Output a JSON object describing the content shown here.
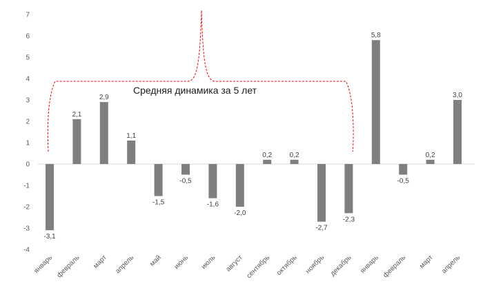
{
  "chart_data": {
    "type": "bar",
    "categories": [
      "январь",
      "февраль",
      "март",
      "апрель",
      "май",
      "июнь",
      "июль",
      "август",
      "сентябрь",
      "октябрь",
      "ноябрь",
      "декабрь",
      "январь",
      "февраль",
      "март",
      "апрель"
    ],
    "values": [
      -3.1,
      2.1,
      2.9,
      1.1,
      -1.5,
      -0.5,
      -1.6,
      -2.0,
      0.2,
      0.2,
      -2.7,
      -2.3,
      5.8,
      -0.5,
      0.2,
      3.0
    ],
    "value_labels": [
      "-3,1",
      "2,1",
      "2,9",
      "1,1",
      "-1,5",
      "-0,5",
      "-1,6",
      "-2,0",
      "0,2",
      "0,2",
      "-2,7",
      "-2,3",
      "5,8",
      "-0,5",
      "0,2",
      "3,0"
    ],
    "ylim": [
      -4,
      7
    ],
    "yticks": [
      -4,
      -3,
      -2,
      -1,
      0,
      1,
      2,
      3,
      4,
      5,
      6,
      7
    ],
    "grid": false,
    "bar_color": "#7f7f7f",
    "annotation": {
      "text": "Средняя динамика за 5 лет",
      "spans_categories": [
        0,
        11
      ],
      "color": "#ff0000"
    }
  }
}
